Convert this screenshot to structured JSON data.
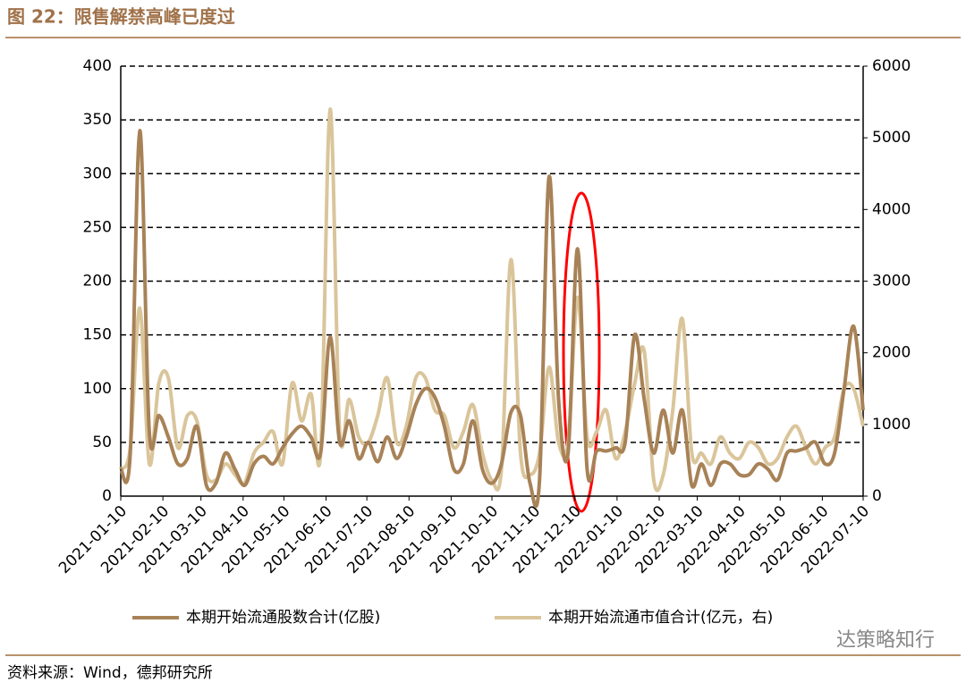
{
  "chart_data": {
    "type": "line",
    "title": "图 22：限售解禁高峰已度过",
    "source": "资料来源：Wind，德邦研究所",
    "watermark": "达策略知行",
    "x": [
      "2021-01-10",
      "2021-01-17",
      "2021-01-24",
      "2021-01-31",
      "2021-02-07",
      "2021-02-14",
      "2021-02-21",
      "2021-02-28",
      "2021-03-07",
      "2021-03-14",
      "2021-03-21",
      "2021-03-28",
      "2021-04-04",
      "2021-04-11",
      "2021-04-18",
      "2021-04-25",
      "2021-05-02",
      "2021-05-09",
      "2021-05-16",
      "2021-05-23",
      "2021-05-30",
      "2021-06-06",
      "2021-06-13",
      "2021-06-20",
      "2021-06-27",
      "2021-07-04",
      "2021-07-11",
      "2021-07-18",
      "2021-07-25",
      "2021-08-01",
      "2021-08-08",
      "2021-08-15",
      "2021-08-22",
      "2021-08-29",
      "2021-09-05",
      "2021-09-12",
      "2021-09-19",
      "2021-09-26",
      "2021-10-03",
      "2021-10-10",
      "2021-10-17",
      "2021-10-24",
      "2021-10-31",
      "2021-11-07",
      "2021-11-14",
      "2021-11-21",
      "2021-11-28",
      "2021-12-05",
      "2021-12-12",
      "2021-12-19",
      "2021-12-26",
      "2022-01-02",
      "2022-01-09",
      "2022-01-16",
      "2022-01-23",
      "2022-01-30",
      "2022-02-06",
      "2022-02-13",
      "2022-02-20",
      "2022-02-27",
      "2022-03-06",
      "2022-03-13",
      "2022-03-20",
      "2022-03-27",
      "2022-04-03",
      "2022-04-10",
      "2022-04-17",
      "2022-04-24",
      "2022-05-01",
      "2022-05-08",
      "2022-05-15",
      "2022-05-22",
      "2022-05-29",
      "2022-06-05",
      "2022-06-12",
      "2022-06-19",
      "2022-06-26",
      "2022-07-03",
      "2022-07-10"
    ],
    "xticks": [
      "2021-01-10",
      "2021-02-10",
      "2021-03-10",
      "2021-04-10",
      "2021-05-10",
      "2021-06-10",
      "2021-07-10",
      "2021-08-10",
      "2021-09-10",
      "2021-10-10",
      "2021-11-10",
      "2021-12-10",
      "2022-01-10",
      "2022-02-10",
      "2022-03-10",
      "2022-04-10",
      "2022-05-10",
      "2022-06-10",
      "2022-07-10"
    ],
    "ylim": [
      0,
      400
    ],
    "yticks": [
      0,
      50,
      100,
      150,
      200,
      250,
      300,
      350,
      400
    ],
    "y2lim": [
      0,
      6000
    ],
    "y2ticks": [
      0,
      1000,
      2000,
      3000,
      4000,
      5000,
      6000
    ],
    "grid": true,
    "series": [
      {
        "name": "本期开始流通股数合计(亿股)",
        "color": "#a88257",
        "axis": "y",
        "values": [
          25,
          40,
          340,
          60,
          75,
          55,
          30,
          35,
          65,
          10,
          12,
          40,
          25,
          10,
          30,
          37,
          30,
          45,
          58,
          65,
          55,
          40,
          148,
          50,
          70,
          35,
          50,
          32,
          55,
          35,
          55,
          85,
          100,
          92,
          65,
          25,
          30,
          70,
          25,
          12,
          30,
          78,
          75,
          12,
          15,
          297,
          90,
          40,
          230,
          25,
          42,
          42,
          45,
          50,
          150,
          90,
          40,
          80,
          40,
          80,
          10,
          30,
          10,
          30,
          30,
          20,
          20,
          30,
          25,
          15,
          40,
          42,
          45,
          50,
          30,
          40,
          100,
          158,
          80
        ]
      },
      {
        "name": "本期开始流通市值合计(亿元，右)",
        "color": "#dac59b",
        "axis": "y2",
        "values": [
          375,
          675,
          2625,
          450,
          1575,
          1650,
          675,
          1125,
          1050,
          300,
          225,
          450,
          300,
          180,
          600,
          750,
          900,
          450,
          1575,
          1050,
          1425,
          600,
          5400,
          900,
          1350,
          825,
          750,
          1125,
          1650,
          750,
          975,
          1650,
          1650,
          1200,
          1125,
          675,
          900,
          1275,
          600,
          225,
          375,
          3300,
          600,
          300,
          600,
          1800,
          750,
          750,
          2775,
          825,
          900,
          1200,
          525,
          900,
          1575,
          2025,
          225,
          300,
          1200,
          2475,
          600,
          600,
          450,
          825,
          600,
          525,
          750,
          675,
          450,
          525,
          825,
          975,
          675,
          450,
          675,
          825,
          1500,
          1500,
          975
        ]
      }
    ]
  }
}
